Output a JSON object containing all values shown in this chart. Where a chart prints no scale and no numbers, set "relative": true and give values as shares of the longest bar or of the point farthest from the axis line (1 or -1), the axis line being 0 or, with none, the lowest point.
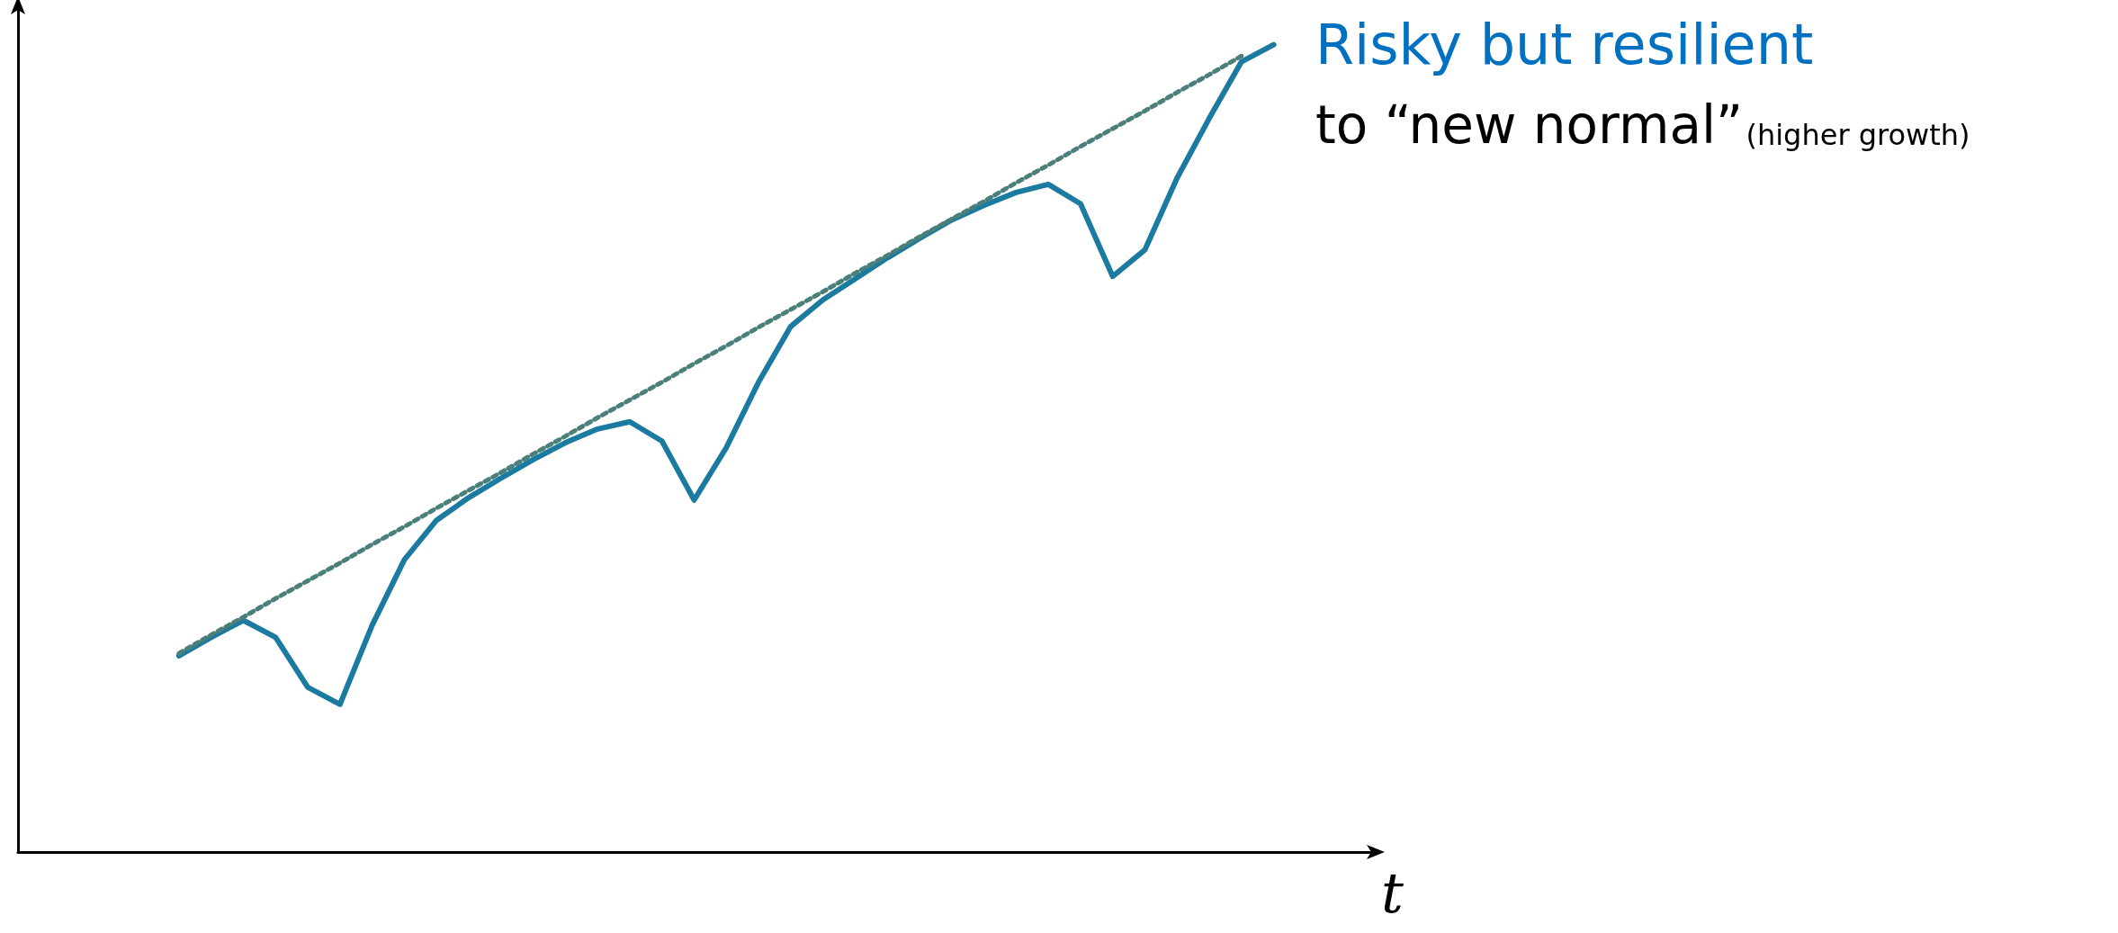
{
  "chart_data": {
    "type": "line",
    "relative": true,
    "xlabel": "t",
    "annotations": [
      "Risky but resilient",
      "to “new normal”",
      "(higher growth)"
    ],
    "categories": [
      null,
      null,
      null,
      null,
      null,
      null,
      null,
      null,
      null,
      null,
      null,
      null,
      null,
      null,
      null,
      null,
      null,
      null,
      null,
      null,
      null,
      null,
      null,
      null,
      null,
      null,
      null,
      null,
      null,
      null,
      null,
      null,
      null,
      null,
      null,
      null,
      null,
      null,
      null,
      null,
      null,
      null,
      null
    ],
    "series": [
      {
        "color": "#1a7aa0",
        "line_style": "solid",
        "values": [
          null,
          null,
          null,
          null,
          null,
          0.243,
          0.266,
          0.287,
          0.266,
          0.204,
          0.183,
          0.281,
          0.362,
          0.411,
          0.439,
          0.463,
          0.486,
          0.507,
          0.524,
          0.533,
          0.509,
          0.436,
          0.501,
          0.582,
          0.651,
          0.684,
          0.71,
          0.736,
          0.76,
          0.783,
          0.801,
          0.817,
          0.827,
          0.803,
          0.713,
          0.746,
          0.835,
          0.909,
          0.979,
          1,
          null,
          null,
          null
        ]
      },
      {
        "color": "#4a7f7a",
        "line_style": "dotted",
        "values": [
          null,
          null,
          null,
          null,
          null,
          0.246,
          0.269,
          0.291,
          0.314,
          0.336,
          0.358,
          0.381,
          0.403,
          0.426,
          0.448,
          0.47,
          0.493,
          0.515,
          0.538,
          0.56,
          0.582,
          0.605,
          0.627,
          0.65,
          0.672,
          0.694,
          0.717,
          0.739,
          0.762,
          0.784,
          0.806,
          0.829,
          0.851,
          0.874,
          0.896,
          0.918,
          0.941,
          0.963,
          0.986,
          null,
          null,
          null,
          null
        ]
      }
    ]
  }
}
